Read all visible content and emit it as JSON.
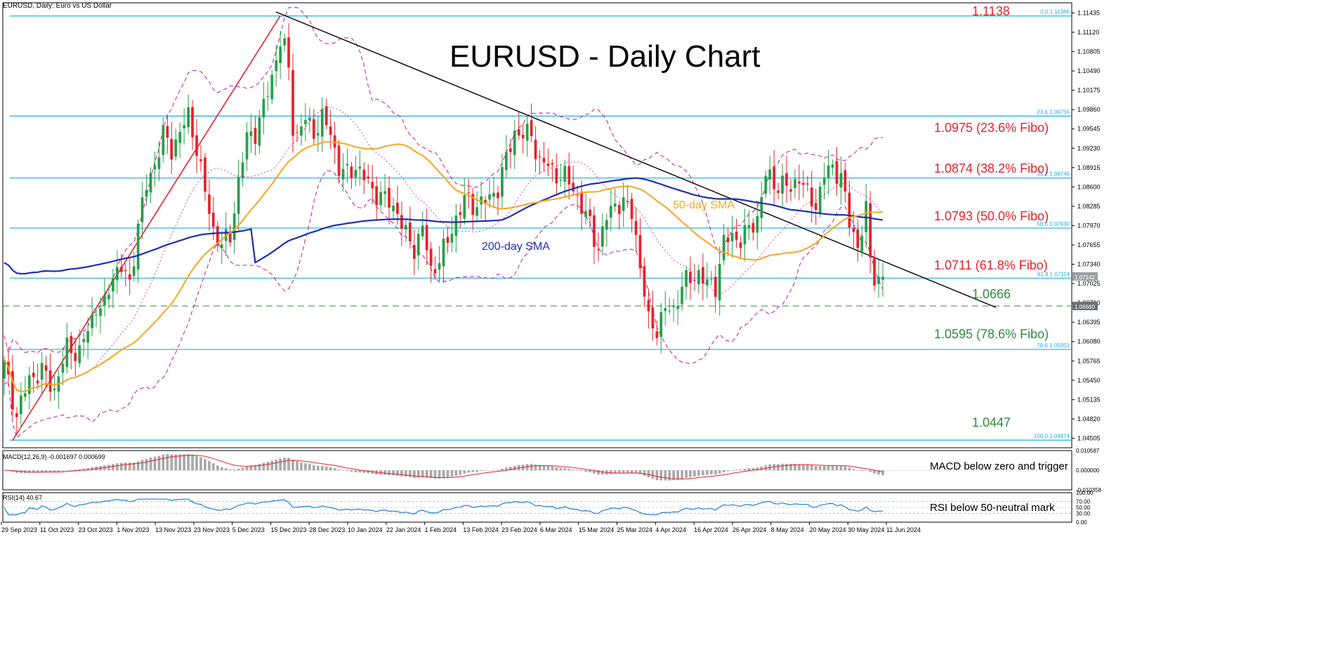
{
  "header": {
    "symbol_label": "EURUSD, Daily:  Euro vs US Dollar"
  },
  "title": "EURUSD - Daily Chart",
  "sma_labels": {
    "sma50": "50-day SMA",
    "sma200": "200-day SMA"
  },
  "annotations": {
    "top": "1.1138",
    "f236": "1.0975 (23.6% Fibo)",
    "f382": "1.0874 (38.2% Fibo)",
    "f500": "1.0793 (50.0% Fibo)",
    "f618": "1.0711 (61.8% Fibo)",
    "support": "1.0666",
    "f786": "1.0595 (78.6% Fibo)",
    "bottom": "1.0447",
    "macd_note": "MACD below zero and trigger",
    "rsi_note": "RSI below 50-neutral mark"
  },
  "indicators": {
    "macd_label": "MACD(12,26,9) -0.001697 0.000699",
    "rsi_label": "RSI(14) 40.67",
    "macd_axis": [
      "0.010587",
      "0.000000",
      "-0.010358"
    ],
    "rsi_axis": [
      "100.00",
      "70.00",
      "50.00",
      "30.00",
      "0.00"
    ]
  },
  "colors": {
    "up": "#26a048",
    "down": "#e8212a",
    "fibo": "#1ab0e0",
    "sma50": "#f5a623",
    "sma200": "#1c2fb5",
    "bollinger": "#c2188e",
    "trend_down": "#000000",
    "trend_up": "#e8212a",
    "macd_hist": "#a9a9a9",
    "macd_signal": "#e8212a",
    "rsi": "#1c7fd6"
  },
  "chart_data": {
    "type": "candlestick",
    "title": "EURUSD - Daily Chart",
    "ylim": [
      1.0435,
      1.116
    ],
    "y_ticks": [
      "1.11435",
      "1.11120",
      "1.10805",
      "1.10490",
      "1.10175",
      "1.09860",
      "1.09545",
      "1.09230",
      "1.08915",
      "1.08600",
      "1.08285",
      "1.07970",
      "1.07655",
      "1.07340",
      "1.07025",
      "1.06710",
      "1.06395",
      "1.06080",
      "1.05765",
      "1.05450",
      "1.05135",
      "1.04820",
      "1.04505"
    ],
    "x_ticks": [
      "29 Sep 2023",
      "11 Oct 2023",
      "23 Oct 2023",
      "1 Nov 2023",
      "13 Nov 2023",
      "23 Nov 2023",
      "5 Dec 2023",
      "15 Dec 2023",
      "28 Dec 2023",
      "10 Jan 2024",
      "22 Jan 2024",
      "1 Feb 2024",
      "13 Feb 2024",
      "23 Feb 2024",
      "6 Mar 2024",
      "15 Mar 2024",
      "25 Mar 2024",
      "4 Apr 2024",
      "16 Apr 2024",
      "26 Apr 2024",
      "8 May 2024",
      "20 May 2024",
      "30 May 2024",
      "11 Jun 2024"
    ],
    "fibo_levels": [
      {
        "label": "0.0 1.11386",
        "value": 1.11386
      },
      {
        "label": "23.6 1.09755",
        "value": 1.09755
      },
      {
        "label": "38.2 1.08746",
        "value": 1.08746
      },
      {
        "label": "50.0 1.07930",
        "value": 1.0793
      },
      {
        "label": "61.8 1.07114",
        "value": 1.07114
      },
      {
        "label": "78.6 1.05953",
        "value": 1.05953
      },
      {
        "label": "100.0 1.04474",
        "value": 1.04474
      }
    ],
    "support_level": {
      "label": "1.06660",
      "value": 1.0666
    },
    "current_price": {
      "label": "1.07142",
      "value": 1.07142
    },
    "close_path": [
      [
        0,
        1.057
      ],
      [
        3,
        1.0488
      ],
      [
        6,
        1.0548
      ],
      [
        9,
        1.056
      ],
      [
        12,
        1.053
      ],
      [
        15,
        1.0598
      ],
      [
        18,
        1.059
      ],
      [
        20,
        1.0628
      ],
      [
        22,
        1.0665
      ],
      [
        24,
        1.0663
      ],
      [
        26,
        1.072
      ],
      [
        28,
        1.0728
      ],
      [
        30,
        1.07
      ],
      [
        32,
        1.08
      ],
      [
        34,
        1.086
      ],
      [
        36,
        1.0898
      ],
      [
        38,
        1.0945
      ],
      [
        40,
        1.092
      ],
      [
        42,
        1.095
      ],
      [
        44,
        1.0975
      ],
      [
        46,
        1.0925
      ],
      [
        48,
        1.085
      ],
      [
        50,
        1.079
      ],
      [
        52,
        1.0765
      ],
      [
        54,
        1.078
      ],
      [
        56,
        1.087
      ],
      [
        58,
        1.094
      ],
      [
        60,
        1.095
      ],
      [
        62,
        1.099
      ],
      [
        64,
        1.104
      ],
      [
        66,
        1.11
      ],
      [
        67,
        1.1085
      ],
      [
        68,
        1.105
      ],
      [
        69,
        1.096
      ],
      [
        70,
        1.0945
      ],
      [
        72,
        1.097
      ],
      [
        74,
        1.095
      ],
      [
        76,
        1.097
      ],
      [
        78,
        1.095
      ],
      [
        80,
        1.089
      ],
      [
        82,
        1.088
      ],
      [
        84,
        1.0895
      ],
      [
        86,
        1.0875
      ],
      [
        88,
        1.0855
      ],
      [
        90,
        1.0845
      ],
      [
        92,
        1.0835
      ],
      [
        94,
        1.082
      ],
      [
        96,
        1.078
      ],
      [
        98,
        1.076
      ],
      [
        100,
        1.0795
      ],
      [
        102,
        1.072
      ],
      [
        104,
        1.0745
      ],
      [
        106,
        1.077
      ],
      [
        108,
        1.081
      ],
      [
        110,
        1.084
      ],
      [
        112,
        1.083
      ],
      [
        114,
        1.0835
      ],
      [
        116,
        1.084
      ],
      [
        118,
        1.086
      ],
      [
        120,
        1.0905
      ],
      [
        122,
        1.095
      ],
      [
        124,
        1.0945
      ],
      [
        126,
        1.0945
      ],
      [
        128,
        1.09
      ],
      [
        130,
        1.0895
      ],
      [
        132,
        1.088
      ],
      [
        134,
        1.0875
      ],
      [
        136,
        1.086
      ],
      [
        138,
        1.0825
      ],
      [
        140,
        1.08
      ],
      [
        142,
        1.076
      ],
      [
        144,
        1.081
      ],
      [
        146,
        1.0835
      ],
      [
        148,
        1.083
      ],
      [
        150,
        1.082
      ],
      [
        151,
        1.078
      ],
      [
        152,
        1.073
      ],
      [
        154,
        1.064
      ],
      [
        156,
        1.063
      ],
      [
        158,
        1.066
      ],
      [
        160,
        1.066
      ],
      [
        162,
        1.07
      ],
      [
        164,
        1.071
      ],
      [
        166,
        1.072
      ],
      [
        168,
        1.07
      ],
      [
        170,
        1.07
      ],
      [
        172,
        1.077
      ],
      [
        174,
        1.078
      ],
      [
        176,
        1.0775
      ],
      [
        178,
        1.079
      ],
      [
        180,
        1.081
      ],
      [
        182,
        1.088
      ],
      [
        184,
        1.0865
      ],
      [
        186,
        1.0865
      ],
      [
        188,
        1.0855
      ],
      [
        190,
        1.088
      ],
      [
        192,
        1.0845
      ],
      [
        194,
        1.083
      ],
      [
        196,
        1.088
      ],
      [
        198,
        1.089
      ],
      [
        200,
        1.088
      ],
      [
        202,
        1.08
      ],
      [
        204,
        1.0765
      ],
      [
        206,
        1.082
      ],
      [
        207,
        1.074
      ],
      [
        208,
        1.0715
      ],
      [
        209,
        1.071
      ],
      [
        210,
        1.0714
      ]
    ],
    "candle_count": 211,
    "legend": "none"
  }
}
